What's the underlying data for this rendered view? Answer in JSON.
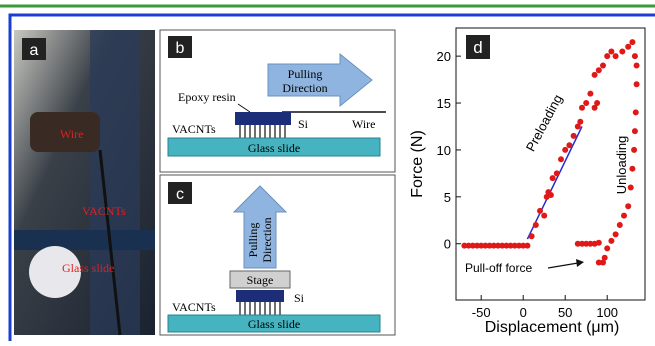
{
  "panels": {
    "a": {
      "label": "a",
      "annotations": [
        "Wire",
        "VACNTs",
        "Glass slide"
      ]
    },
    "b": {
      "label": "b",
      "arrow_label": [
        "Pulling",
        "Direction"
      ],
      "epoxy": "Epoxy resin",
      "vacnts": "VACNTs",
      "si": "Si",
      "wire": "Wire",
      "glass": "Glass slide"
    },
    "c": {
      "label": "c",
      "arrow_label": [
        "Pulling",
        "Direction"
      ],
      "stage": "Stage",
      "vacnts": "VACNTs",
      "si": "Si",
      "glass": "Glass slide"
    }
  },
  "chart_data": {
    "type": "scatter",
    "panel_label": "d",
    "x_label": "Displacement (μm)",
    "y_label": "Force (N)",
    "annotations": {
      "preloading": "Preloading",
      "unloading": "Unloading",
      "pull_off": "Pull-off force"
    },
    "color": "#e01818",
    "x": [
      -70,
      -65,
      -60,
      -55,
      -50,
      -45,
      -40,
      -35,
      -30,
      -25,
      -20,
      -15,
      -10,
      -5,
      0,
      5,
      10,
      15,
      20,
      25,
      28,
      30,
      33,
      35,
      40,
      45,
      50,
      55,
      60,
      65,
      68,
      70,
      75,
      80,
      85,
      88,
      85,
      90,
      95,
      100,
      105,
      110,
      118,
      125,
      130,
      133,
      135,
      135,
      134,
      133,
      132,
      130,
      128,
      125,
      120,
      115,
      110,
      105,
      100,
      97,
      95,
      90,
      65,
      70,
      75,
      80,
      85,
      90
    ],
    "values": [
      -0.2,
      -0.2,
      -0.2,
      -0.2,
      -0.2,
      -0.2,
      -0.2,
      -0.2,
      -0.2,
      -0.2,
      -0.2,
      -0.2,
      -0.2,
      -0.2,
      -0.2,
      -0.2,
      0.8,
      2,
      3.5,
      3,
      5,
      5.5,
      5.2,
      7,
      7.5,
      9,
      10,
      10.5,
      11.5,
      12.5,
      13,
      14.5,
      15,
      16,
      18,
      15,
      14.5,
      18.5,
      19,
      20,
      20.5,
      20,
      20.5,
      21,
      21.5,
      20,
      19,
      17,
      14,
      12,
      10,
      8,
      6,
      4,
      3,
      2,
      1,
      0.3,
      -0.5,
      -1.5,
      -2,
      -2,
      0,
      0,
      0,
      0,
      0,
      0.1
    ],
    "fit": {
      "x": [
        5,
        70
      ],
      "values": [
        0.5,
        12.5
      ],
      "color": "#2a2acc"
    },
    "xlim": [
      -80,
      145
    ],
    "ylim": [
      -6,
      23
    ],
    "xticks": [
      -50,
      0,
      50,
      100
    ],
    "yticks": [
      0,
      5,
      10,
      15,
      20
    ]
  }
}
